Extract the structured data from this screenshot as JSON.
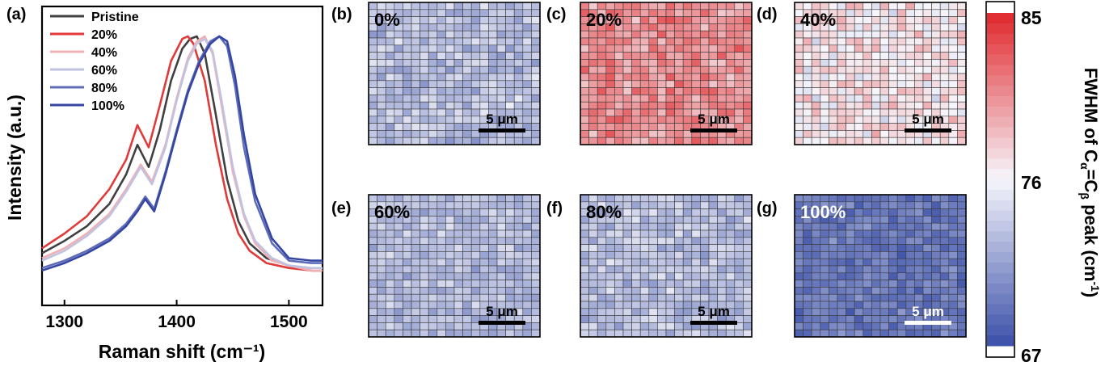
{
  "colors": {
    "low": "#3a4fa8",
    "mid": "#f6f6fb",
    "high": "#e0282b",
    "series": [
      "#404040",
      "#e03a3a",
      "#f0b0b4",
      "#c0c2e2",
      "#5f6cb8",
      "#3446a2"
    ]
  },
  "chart_data": [
    {
      "type": "line",
      "panel": "(a)",
      "xlabel": "Raman shift (cm⁻¹)",
      "ylabel": "Intensity (a.u.)",
      "xlim": [
        1280,
        1530
      ],
      "xticks": [
        1300,
        1400,
        1500
      ],
      "legend_position": "top-left",
      "series": [
        {
          "name": "Pristine",
          "x": [
            1280,
            1300,
            1320,
            1340,
            1355,
            1365,
            1375,
            1385,
            1395,
            1405,
            1412,
            1418,
            1425,
            1435,
            1445,
            1455,
            1465,
            1480,
            1500,
            1520,
            1530
          ],
          "values": [
            0.12,
            0.17,
            0.23,
            0.32,
            0.44,
            0.56,
            0.47,
            0.62,
            0.82,
            0.95,
            0.99,
            1.0,
            0.93,
            0.68,
            0.42,
            0.25,
            0.16,
            0.1,
            0.07,
            0.05,
            0.05
          ]
        },
        {
          "name": "20%",
          "x": [
            1280,
            1300,
            1320,
            1340,
            1355,
            1365,
            1375,
            1385,
            1395,
            1405,
            1410,
            1415,
            1425,
            1435,
            1445,
            1455,
            1465,
            1480,
            1500,
            1520,
            1530
          ],
          "values": [
            0.14,
            0.2,
            0.27,
            0.38,
            0.5,
            0.64,
            0.55,
            0.72,
            0.9,
            0.99,
            1.0,
            0.97,
            0.82,
            0.56,
            0.34,
            0.2,
            0.13,
            0.08,
            0.06,
            0.05,
            0.05
          ]
        },
        {
          "name": "40%",
          "x": [
            1280,
            1300,
            1320,
            1340,
            1355,
            1368,
            1378,
            1390,
            1400,
            1410,
            1418,
            1425,
            1432,
            1440,
            1450,
            1460,
            1470,
            1485,
            1500,
            1520,
            1530
          ],
          "values": [
            0.1,
            0.14,
            0.2,
            0.28,
            0.38,
            0.48,
            0.41,
            0.56,
            0.75,
            0.91,
            0.98,
            1.0,
            0.93,
            0.72,
            0.45,
            0.27,
            0.16,
            0.09,
            0.07,
            0.05,
            0.05
          ]
        },
        {
          "name": "60%",
          "x": [
            1280,
            1300,
            1320,
            1340,
            1355,
            1368,
            1378,
            1390,
            1400,
            1410,
            1418,
            1425,
            1432,
            1440,
            1450,
            1460,
            1470,
            1485,
            1500,
            1520,
            1530
          ],
          "values": [
            0.09,
            0.13,
            0.19,
            0.27,
            0.37,
            0.47,
            0.4,
            0.55,
            0.74,
            0.9,
            0.97,
            0.99,
            0.94,
            0.74,
            0.47,
            0.28,
            0.17,
            0.1,
            0.07,
            0.06,
            0.06
          ]
        },
        {
          "name": "80%",
          "x": [
            1280,
            1300,
            1320,
            1340,
            1355,
            1365,
            1372,
            1380,
            1390,
            1400,
            1410,
            1420,
            1430,
            1438,
            1445,
            1452,
            1460,
            1470,
            1485,
            1500,
            1520,
            1530
          ],
          "values": [
            0.06,
            0.09,
            0.13,
            0.18,
            0.24,
            0.3,
            0.35,
            0.3,
            0.45,
            0.62,
            0.78,
            0.9,
            0.98,
            1.0,
            0.96,
            0.8,
            0.55,
            0.33,
            0.16,
            0.09,
            0.08,
            0.08
          ]
        },
        {
          "name": "100%",
          "x": [
            1280,
            1300,
            1320,
            1340,
            1355,
            1365,
            1372,
            1380,
            1390,
            1400,
            1410,
            1420,
            1430,
            1438,
            1445,
            1452,
            1460,
            1470,
            1485,
            1500,
            1520,
            1530
          ],
          "values": [
            0.05,
            0.08,
            0.12,
            0.17,
            0.23,
            0.29,
            0.34,
            0.29,
            0.44,
            0.61,
            0.77,
            0.89,
            0.97,
            1.0,
            0.98,
            0.84,
            0.6,
            0.36,
            0.18,
            0.1,
            0.09,
            0.09
          ]
        }
      ]
    },
    {
      "type": "heatmap",
      "panels": [
        {
          "label": "(b)",
          "sample": "0%",
          "mean": 73.0,
          "spread": 1.6
        },
        {
          "label": "(c)",
          "sample": "20%",
          "mean": 80.5,
          "spread": 1.8
        },
        {
          "label": "(d)",
          "sample": "40%",
          "mean": 76.8,
          "spread": 1.8
        },
        {
          "label": "(e)",
          "sample": "60%",
          "mean": 72.8,
          "spread": 1.4
        },
        {
          "label": "(f)",
          "sample": "80%",
          "mean": 73.0,
          "spread": 1.5
        },
        {
          "label": "(g)",
          "sample": "100%",
          "mean": 69.3,
          "spread": 1.2
        }
      ],
      "grid": [
        20,
        20
      ],
      "scale_bar": "5 μm",
      "colorbar": {
        "min": 67,
        "max": 85,
        "ticks": [
          "85",
          "76",
          "67"
        ],
        "label": "FWHM of C",
        "label_sub1": "α",
        "label_mid": "=C",
        "label_sub2": "β",
        "label_end": " peak (cm",
        "label_sup": "-1",
        "label_close": ")"
      }
    }
  ]
}
